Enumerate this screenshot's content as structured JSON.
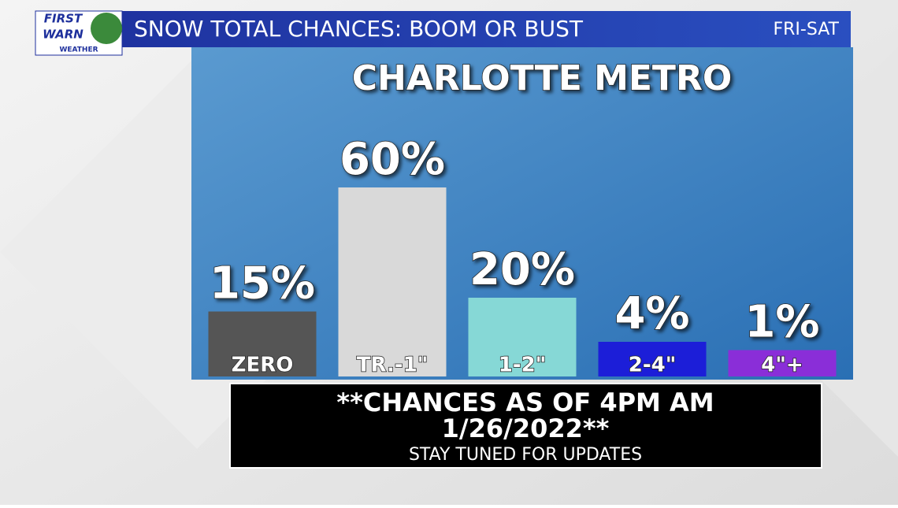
{
  "header": {
    "logo_top": "FIRST",
    "logo_middle": "WARN",
    "logo_bottom": "WEATHER",
    "title": "SNOW TOTAL CHANCES: BOOM OR BUST",
    "period": "FRI-SAT"
  },
  "chart_data": {
    "type": "bar",
    "title": "CHARLOTTE METRO",
    "categories": [
      "ZERO",
      "TR.-1\"",
      "1-2\"",
      "2-4\"",
      "4\"+"
    ],
    "values": [
      15,
      60,
      20,
      4,
      1
    ],
    "value_labels": [
      "15%",
      "60%",
      "20%",
      "4%",
      "1%"
    ],
    "colors": [
      "#555555",
      "#d9d9d9",
      "#86d8d6",
      "#1c1ed8",
      "#8a2ed8"
    ]
  },
  "footer": {
    "line1": "**CHANCES AS OF 4PM AM",
    "line2": "1/26/2022**",
    "line3": "STAY TUNED FOR UPDATES"
  }
}
